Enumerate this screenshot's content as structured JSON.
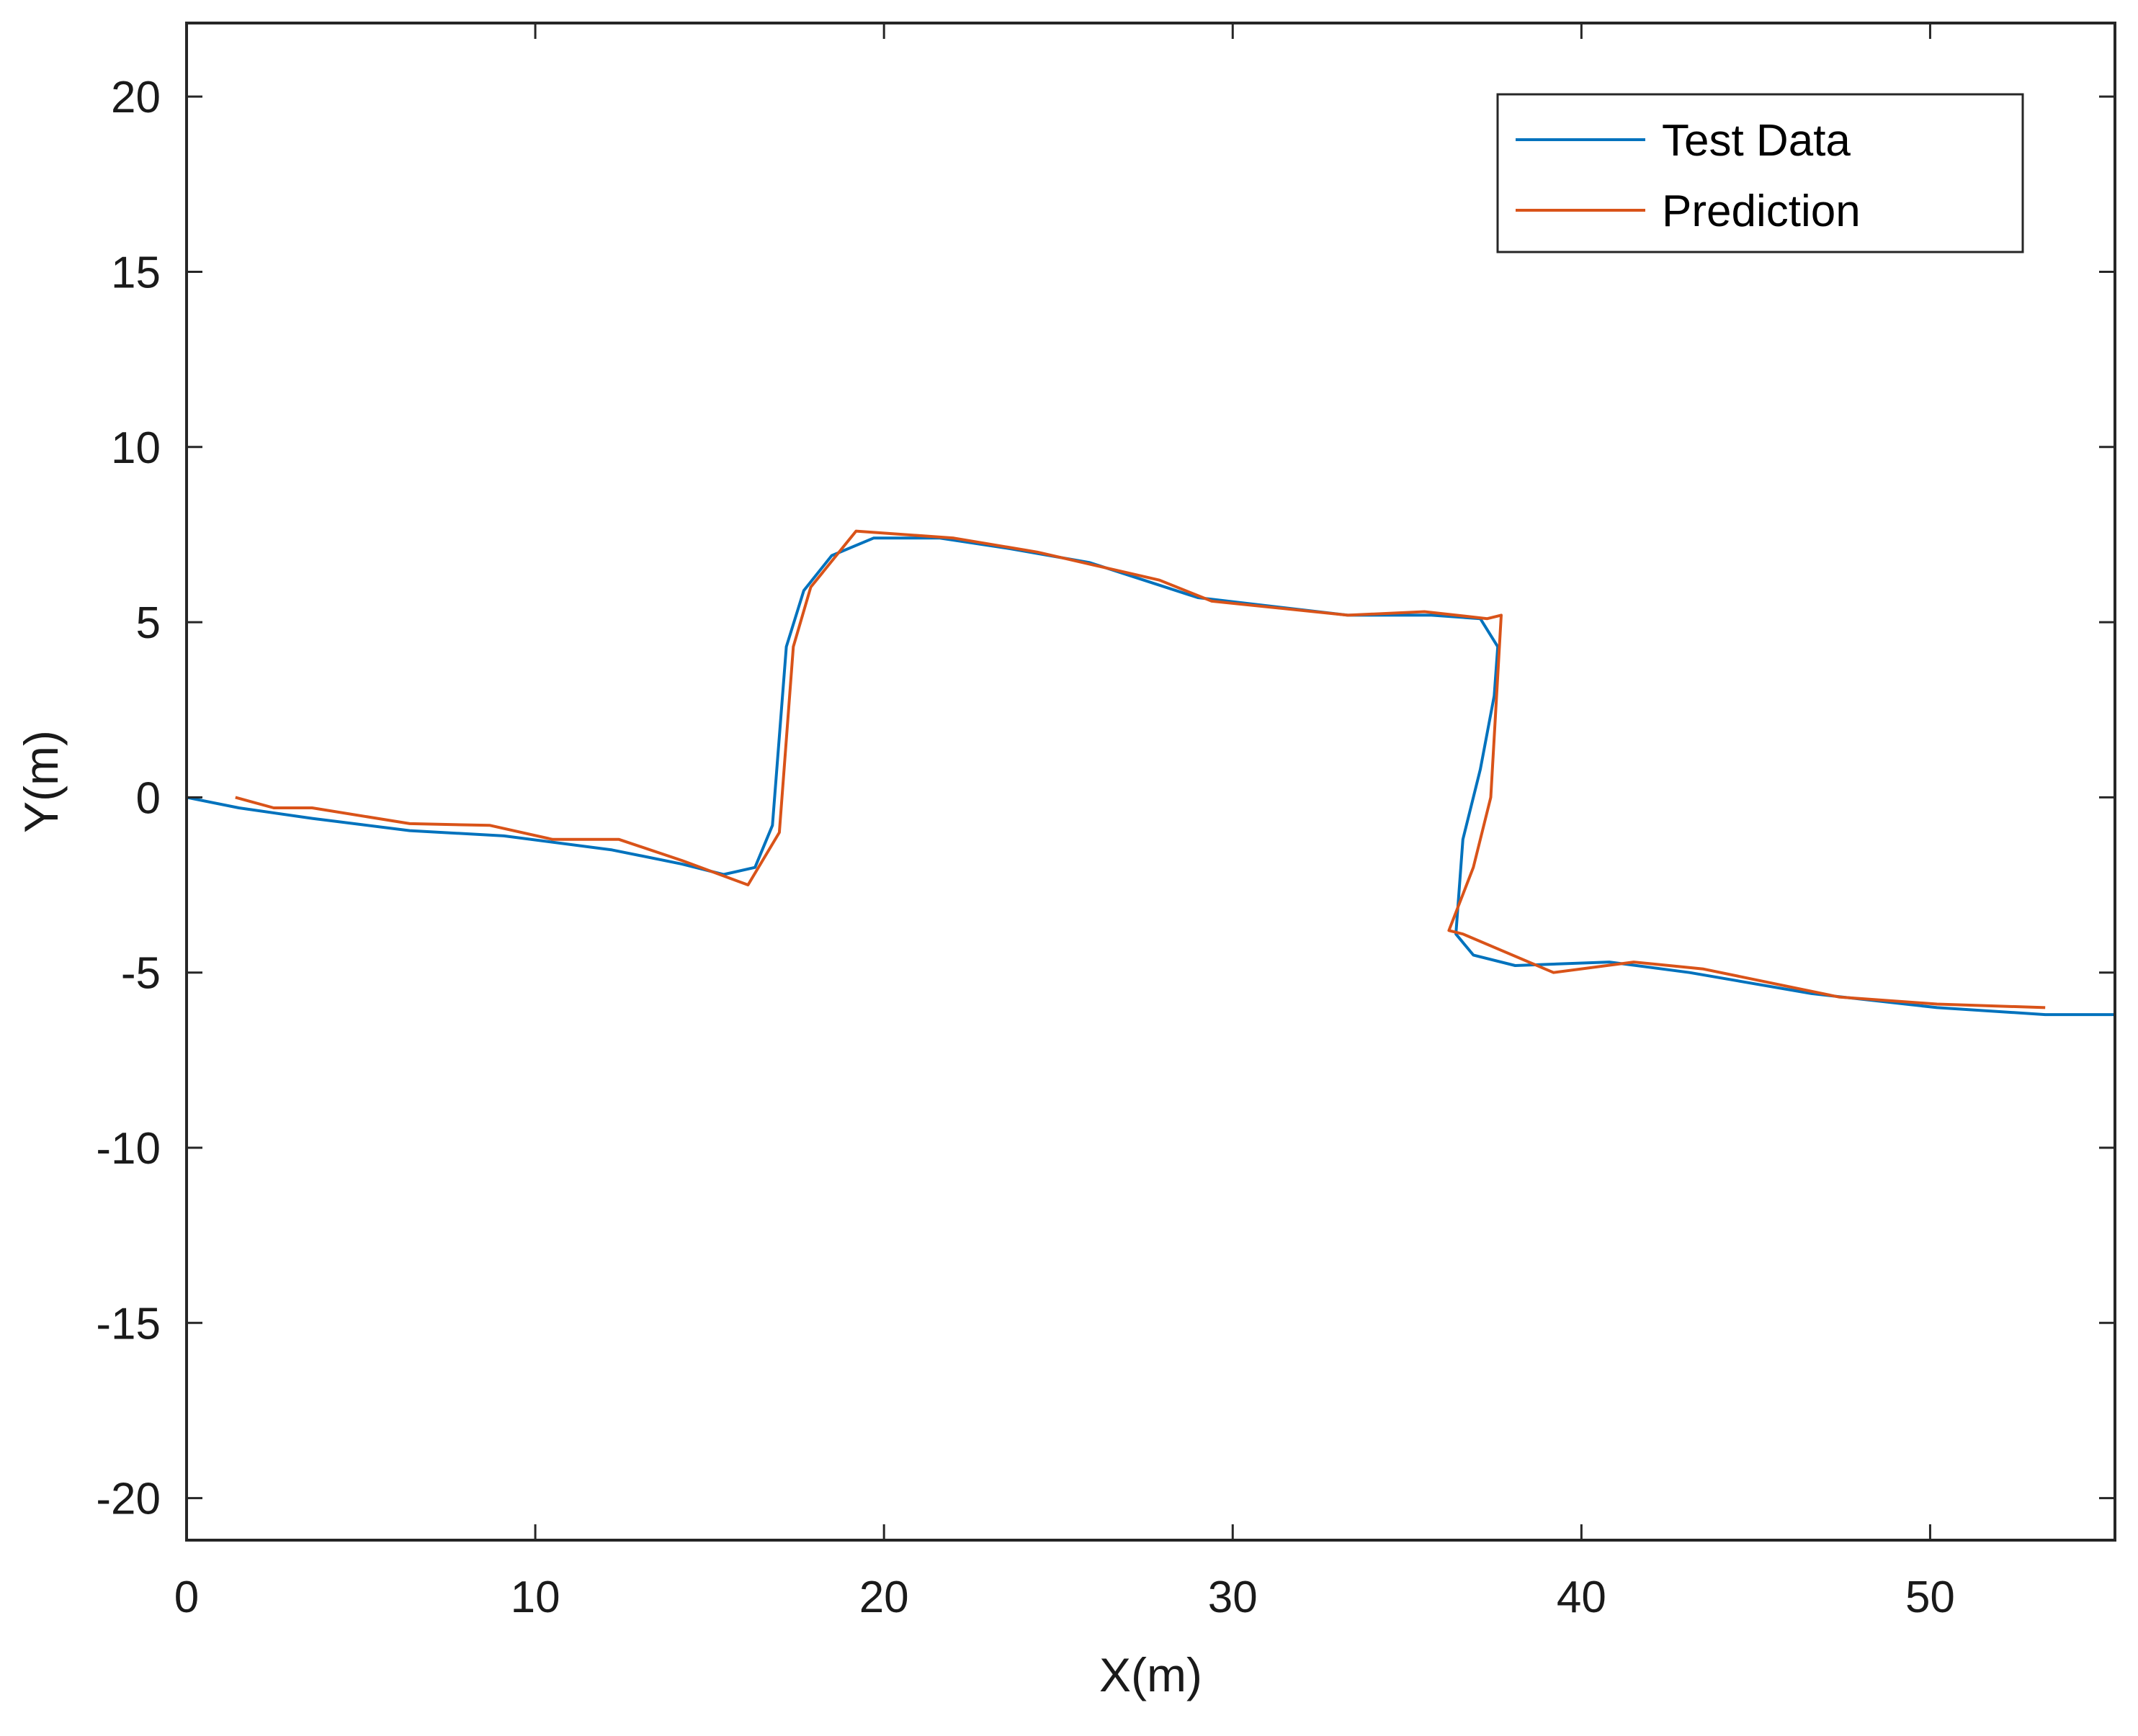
{
  "chart_data": {
    "type": "line",
    "title": "",
    "xlabel": "X(m)",
    "ylabel": "Y(m)",
    "xlim": [
      0,
      55.3
    ],
    "ylim": [
      -21.2,
      22.1
    ],
    "xticks": [
      0,
      10,
      20,
      30,
      40,
      50
    ],
    "yticks": [
      -20,
      -15,
      -10,
      -5,
      0,
      5,
      10,
      15,
      20
    ],
    "grid": false,
    "legend_position": "upper right",
    "series": [
      {
        "name": "Test Data",
        "color": "#0072BD",
        "x": [
          0,
          1.5,
          3.6,
          6.4,
          9.1,
          12.2,
          14.2,
          15.4,
          16.3,
          16.8,
          17.2,
          17.7,
          18.5,
          19.7,
          21.6,
          23.6,
          25.9,
          29.0,
          33.3,
          35.7,
          37.1,
          37.6,
          37.5,
          37.1,
          36.6,
          36.4,
          36.9,
          38.1,
          40.8,
          43.1,
          46.6,
          50.2,
          53.3,
          55.3
        ],
        "y": [
          0,
          -0.3,
          -0.6,
          -0.95,
          -1.1,
          -1.5,
          -1.9,
          -2.2,
          -2.0,
          -0.8,
          4.3,
          5.9,
          6.9,
          7.4,
          7.4,
          7.1,
          6.7,
          5.7,
          5.2,
          5.2,
          5.1,
          4.3,
          2.9,
          0.8,
          -1.2,
          -3.9,
          -4.5,
          -4.8,
          -4.7,
          -5.0,
          -5.6,
          -6.0,
          -6.2,
          -6.2
        ]
      },
      {
        "name": "Prediction",
        "color": "#D95319",
        "x": [
          1.4,
          2.5,
          3.6,
          6.4,
          8.7,
          10.5,
          12.4,
          14.2,
          16.1,
          17.0,
          17.4,
          17.9,
          19.2,
          22.0,
          24.4,
          27.9,
          29.4,
          33.3,
          35.5,
          37.3,
          37.7,
          37.4,
          36.9,
          36.2,
          36.6,
          39.2,
          41.5,
          43.5,
          47.4,
          50.2,
          53.3
        ],
        "y": [
          0.0,
          -0.3,
          -0.3,
          -0.75,
          -0.8,
          -1.2,
          -1.2,
          -1.8,
          -2.5,
          -1.0,
          4.3,
          6.0,
          7.6,
          7.4,
          7.0,
          6.2,
          5.6,
          5.2,
          5.3,
          5.1,
          5.2,
          0.0,
          -2.0,
          -3.8,
          -3.9,
          -5.0,
          -4.7,
          -4.9,
          -5.7,
          -5.9,
          -6.0
        ]
      }
    ]
  },
  "legend": {
    "items": [
      {
        "label": "Test Data",
        "color": "#0072BD"
      },
      {
        "label": "Prediction",
        "color": "#D95319"
      }
    ]
  },
  "axes": {
    "x_label": "X(m)",
    "y_label": "Y(m)",
    "x_tick_labels": [
      "0",
      "10",
      "20",
      "30",
      "40",
      "50"
    ],
    "y_tick_labels": [
      "20",
      "15",
      "10",
      "5",
      "0",
      "-5",
      "-10",
      "-15",
      "-20"
    ]
  }
}
